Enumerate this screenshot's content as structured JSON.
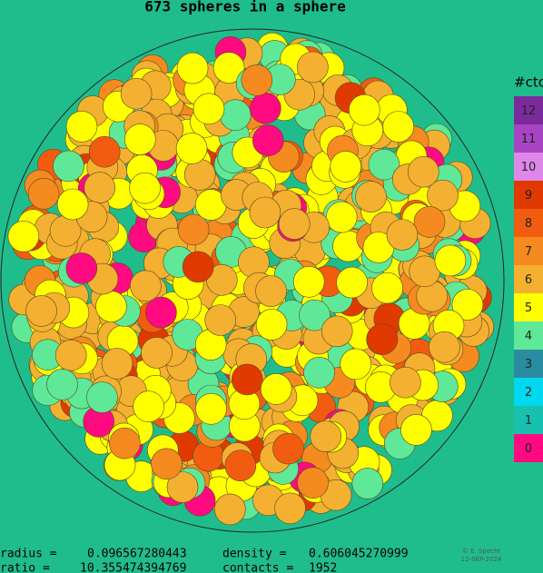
{
  "title": "673 spheres in a sphere",
  "legend": {
    "title": "#ctc",
    "items": [
      {
        "label": "12",
        "color": "#7b2a9c"
      },
      {
        "label": "11",
        "color": "#a844c4"
      },
      {
        "label": "10",
        "color": "#dd88e8"
      },
      {
        "label": "9",
        "color": "#e03a00"
      },
      {
        "label": "8",
        "color": "#f25c10"
      },
      {
        "label": "7",
        "color": "#f58a20"
      },
      {
        "label": "6",
        "color": "#f4b030"
      },
      {
        "label": "5",
        "color": "#ffff00"
      },
      {
        "label": "4",
        "color": "#5ee898"
      },
      {
        "label": "3",
        "color": "#2a8ca0"
      },
      {
        "label": "2",
        "color": "#00d8f0"
      },
      {
        "label": "1",
        "color": "#18c0b0"
      },
      {
        "label": "0",
        "color": "#ff0a80"
      }
    ]
  },
  "stats": [
    {
      "label": "radius =",
      "value": "0.096567280443"
    },
    {
      "label": "density =",
      "value": "0.606045270999"
    },
    {
      "label": "ratio =",
      "value": "10.355474394769"
    },
    {
      "label": "contacts =",
      "value": "1952"
    }
  ],
  "credit": {
    "author": "© E. Specht",
    "date": "12-SEP-2024"
  }
}
